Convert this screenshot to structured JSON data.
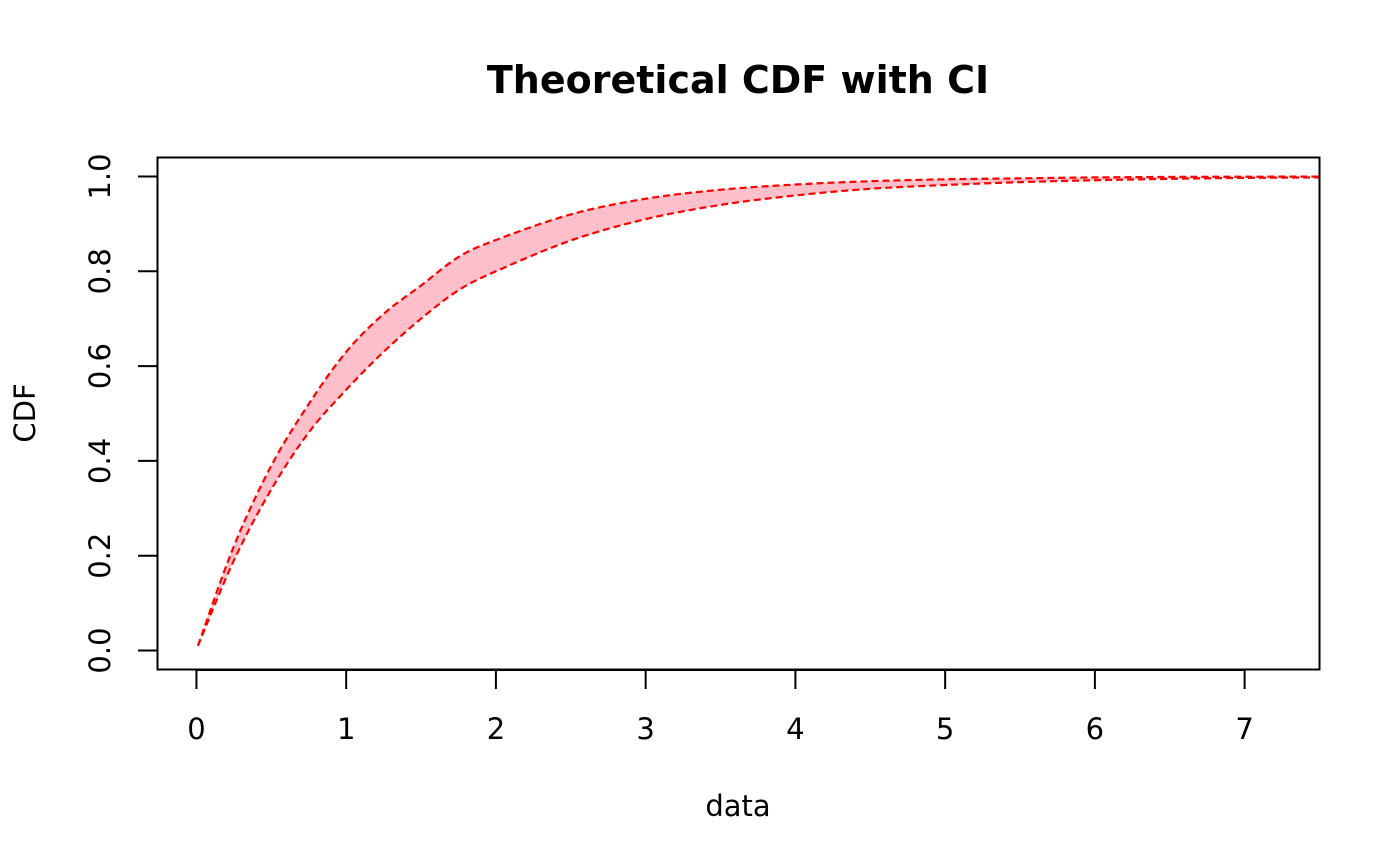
{
  "chart_data": {
    "type": "area",
    "title": "Theoretical CDF with CI",
    "xlabel": "data",
    "ylabel": "CDF",
    "xlim": [
      -0.26,
      7.5
    ],
    "ylim": [
      -0.04,
      1.04
    ],
    "x_ticks": [
      "0",
      "1",
      "2",
      "3",
      "4",
      "5",
      "6",
      "7"
    ],
    "y_ticks": [
      "0.0",
      "0.2",
      "0.4",
      "0.6",
      "0.8",
      "1.0"
    ],
    "grid": false,
    "legend": "none",
    "x": [
      0.01,
      0.25,
      0.5,
      0.75,
      1.0,
      1.25,
      1.5,
      1.75,
      2.0,
      2.5,
      3.0,
      3.5,
      4.0,
      4.5,
      5.0,
      5.5,
      6.0,
      6.5,
      7.0,
      7.5
    ],
    "series": [
      {
        "values": [
          0.01,
          0.22,
          0.39,
          0.52,
          0.63,
          0.71,
          0.77,
          0.83,
          0.866,
          0.92,
          0.953,
          0.972,
          0.983,
          0.99,
          0.994,
          0.996,
          0.998,
          0.999,
          0.9995,
          0.9997
        ],
        "color": "#ff0000",
        "style": "dashed"
      },
      {
        "values": [
          0.01,
          0.19,
          0.34,
          0.46,
          0.55,
          0.63,
          0.7,
          0.76,
          0.8,
          0.865,
          0.91,
          0.94,
          0.96,
          0.974,
          0.982,
          0.988,
          0.992,
          0.995,
          0.997,
          0.998
        ],
        "color": "#ff0000",
        "style": "dashed"
      }
    ],
    "band_fill": "#ffc0cb"
  }
}
